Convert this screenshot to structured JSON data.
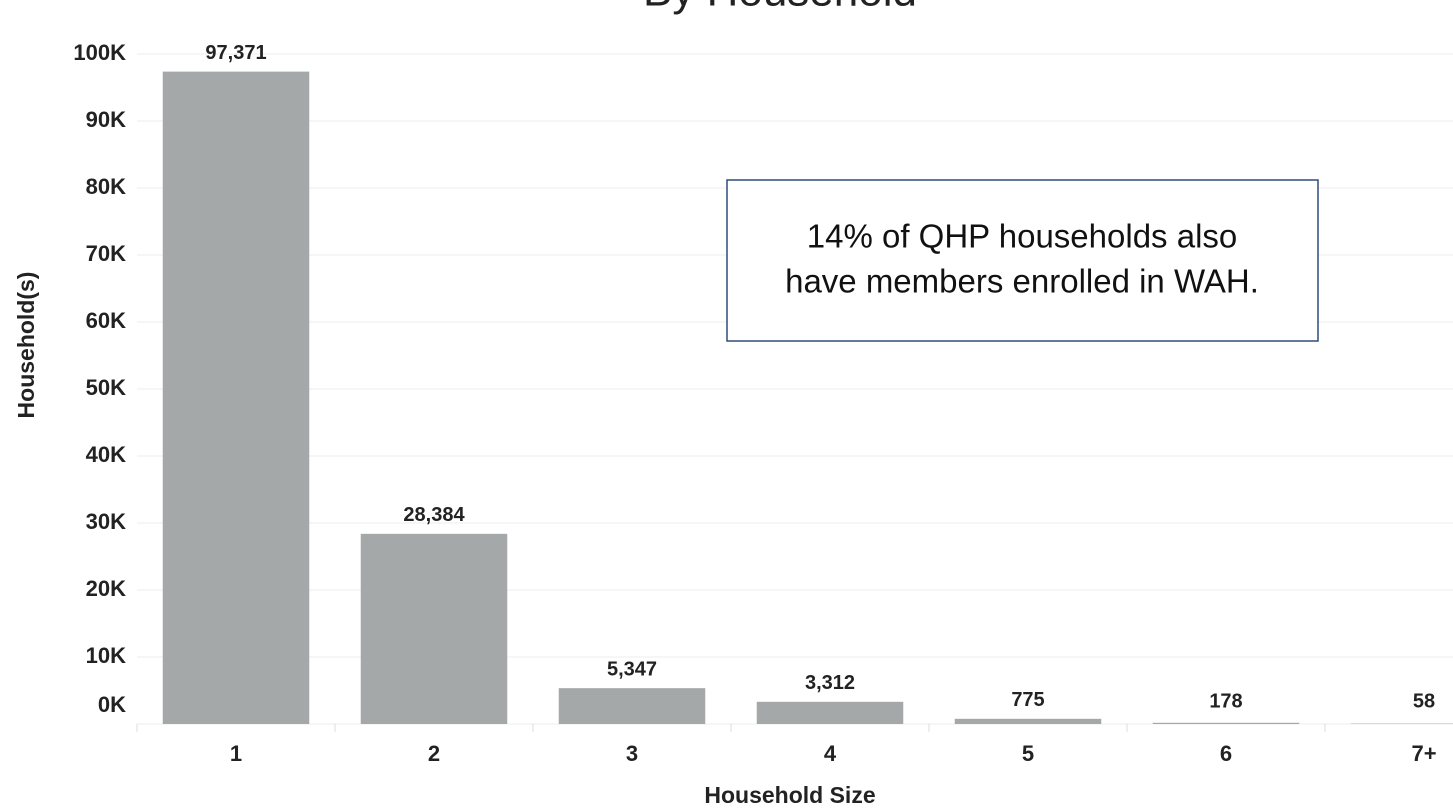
{
  "chart_data": {
    "type": "bar",
    "title": "By Household",
    "categories": [
      "1",
      "2",
      "3",
      "4",
      "5",
      "6",
      "7+"
    ],
    "values": [
      97371,
      28384,
      5347,
      3312,
      775,
      178,
      58
    ],
    "value_labels": [
      "97,371",
      "28,384",
      "5,347",
      "3,312",
      "775",
      "178",
      "58"
    ],
    "color": "#a5a8a8",
    "xlabel": "Household Size",
    "ylabel": "Household(s)",
    "ylim": [
      0,
      100000
    ],
    "yticks": [
      {
        "value": 0,
        "label": "0K"
      },
      {
        "value": 10000,
        "label": "10K"
      },
      {
        "value": 20000,
        "label": "20K"
      },
      {
        "value": 30000,
        "label": "30K"
      },
      {
        "value": 40000,
        "label": "40K"
      },
      {
        "value": 50000,
        "label": "50K"
      },
      {
        "value": 60000,
        "label": "60K"
      },
      {
        "value": 70000,
        "label": "70K"
      },
      {
        "value": 80000,
        "label": "80K"
      },
      {
        "value": 90000,
        "label": "90K"
      },
      {
        "value": 100000,
        "label": "100K"
      }
    ],
    "grid": true,
    "annotation": [
      "14% of QHP households also",
      "have members enrolled in WAH."
    ]
  }
}
